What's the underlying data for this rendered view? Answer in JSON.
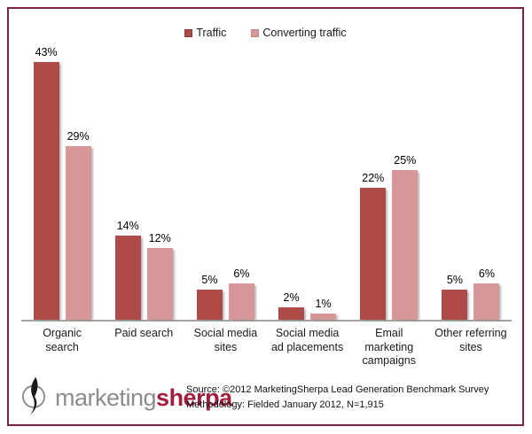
{
  "chart_data": {
    "type": "bar",
    "title": "",
    "xlabel": "",
    "ylabel": "",
    "value_suffix": "%",
    "ylim": [
      0,
      45
    ],
    "grid": false,
    "legend_position": "top-center",
    "categories": [
      "Organic search",
      "Paid search",
      "Social media sites",
      "Social media ad placements",
      "Email marketing campaigns",
      "Other referring sites"
    ],
    "series": [
      {
        "name": "Traffic",
        "color": "#AE4A47",
        "values": [
          43,
          14,
          5,
          2,
          22,
          5
        ]
      },
      {
        "name": "Converting traffic",
        "color": "#D79697",
        "values": [
          29,
          12,
          6,
          1,
          25,
          6
        ]
      }
    ]
  },
  "footer": {
    "logo_gray": "marketing",
    "logo_red": "sherpa",
    "logo_icon": "compass-quill-icon",
    "source_line1": "Source: ©2012 MarketingSherpa Lead Generation Benchmark Survey",
    "source_line2": "Methodology: Fielded January 2012, N=1,915"
  },
  "colors": {
    "frame_border": "#7D2248",
    "axis_line": "#A3A3A3",
    "traffic_bar": "#AE4A47",
    "converting_traffic_bar": "#D79697",
    "logo_gray": "#8C8C8C",
    "logo_red": "#A01D3C"
  }
}
